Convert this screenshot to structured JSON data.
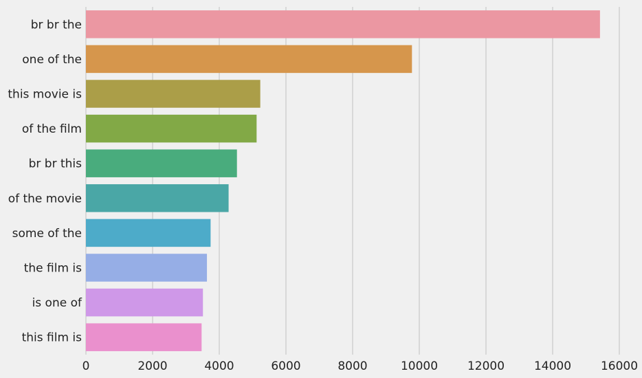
{
  "chart_data": {
    "type": "bar",
    "orientation": "horizontal",
    "categories": [
      "br br the",
      "one of the",
      "this movie is",
      "of the film",
      "br br this",
      "of the movie",
      "some of the",
      "the film is",
      "is one of",
      "this film is"
    ],
    "values": [
      15420,
      9780,
      5230,
      5120,
      4530,
      4280,
      3740,
      3630,
      3510,
      3470
    ],
    "colors": [
      "#eb97a2",
      "#d6964c",
      "#ab9e48",
      "#82a946",
      "#49ac7d",
      "#4aa7a6",
      "#4dabc9",
      "#96aee6",
      "#cf98e8",
      "#ea90cd"
    ],
    "xlim": [
      0,
      16500
    ],
    "xticks": [
      0,
      2000,
      4000,
      6000,
      8000,
      10000,
      12000,
      14000,
      16000
    ],
    "xtick_labels": [
      "0",
      "2000",
      "4000",
      "6000",
      "8000",
      "10000",
      "12000",
      "14000",
      "16000"
    ],
    "xlabel": "",
    "ylabel": "",
    "title": "",
    "grid": "vertical",
    "background": "#f0f0f0"
  }
}
